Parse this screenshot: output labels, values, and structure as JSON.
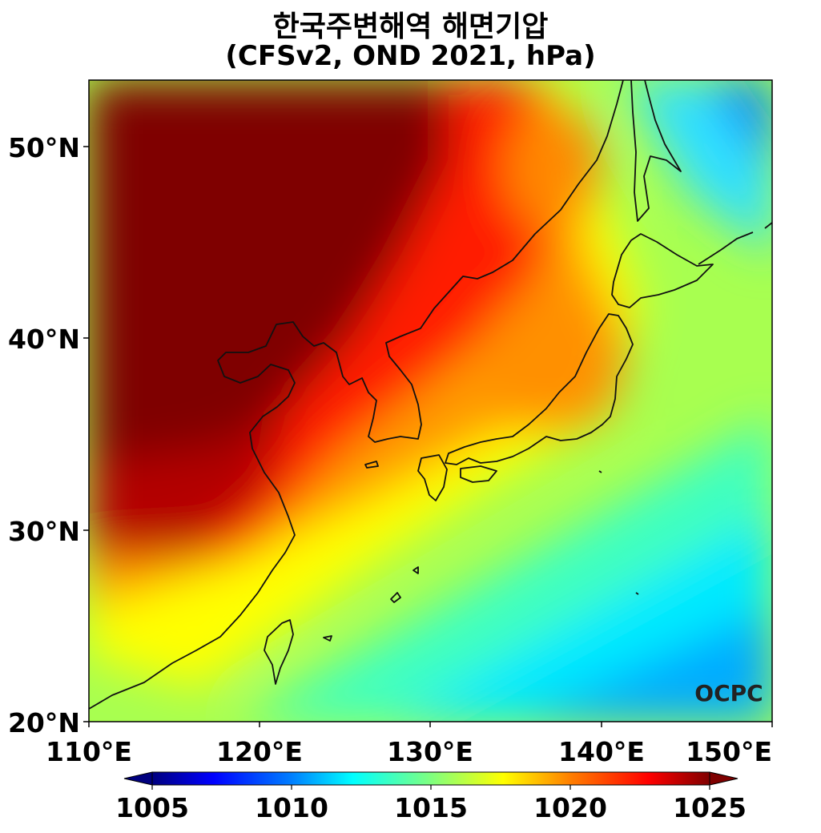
{
  "title": {
    "line1": "한국주변해역 해면기압",
    "line2": "(CFSv2, OND 2021, hPa)"
  },
  "map": {
    "region": "Korea and surrounding seas",
    "lon_range": [
      110,
      150
    ],
    "lat_range": [
      20,
      53.5
    ],
    "lon_ticks": [
      "110°E",
      "120°E",
      "130°E",
      "140°E",
      "150°E"
    ],
    "lat_ticks": [
      "20°N",
      "30°N",
      "40°N",
      "50°N"
    ],
    "field": "sea level pressure",
    "watermark": "OCPC"
  },
  "colorbar": {
    "min": 1005,
    "max": 1025,
    "ticks": [
      "1005",
      "1010",
      "1015",
      "1020",
      "1025"
    ],
    "extend": "both",
    "colormap": "jet",
    "colors": [
      "#00007f",
      "#0000ff",
      "#007fff",
      "#00ffff",
      "#7fff7f",
      "#ffff00",
      "#ff7f00",
      "#ff0000",
      "#7f0000"
    ]
  }
}
